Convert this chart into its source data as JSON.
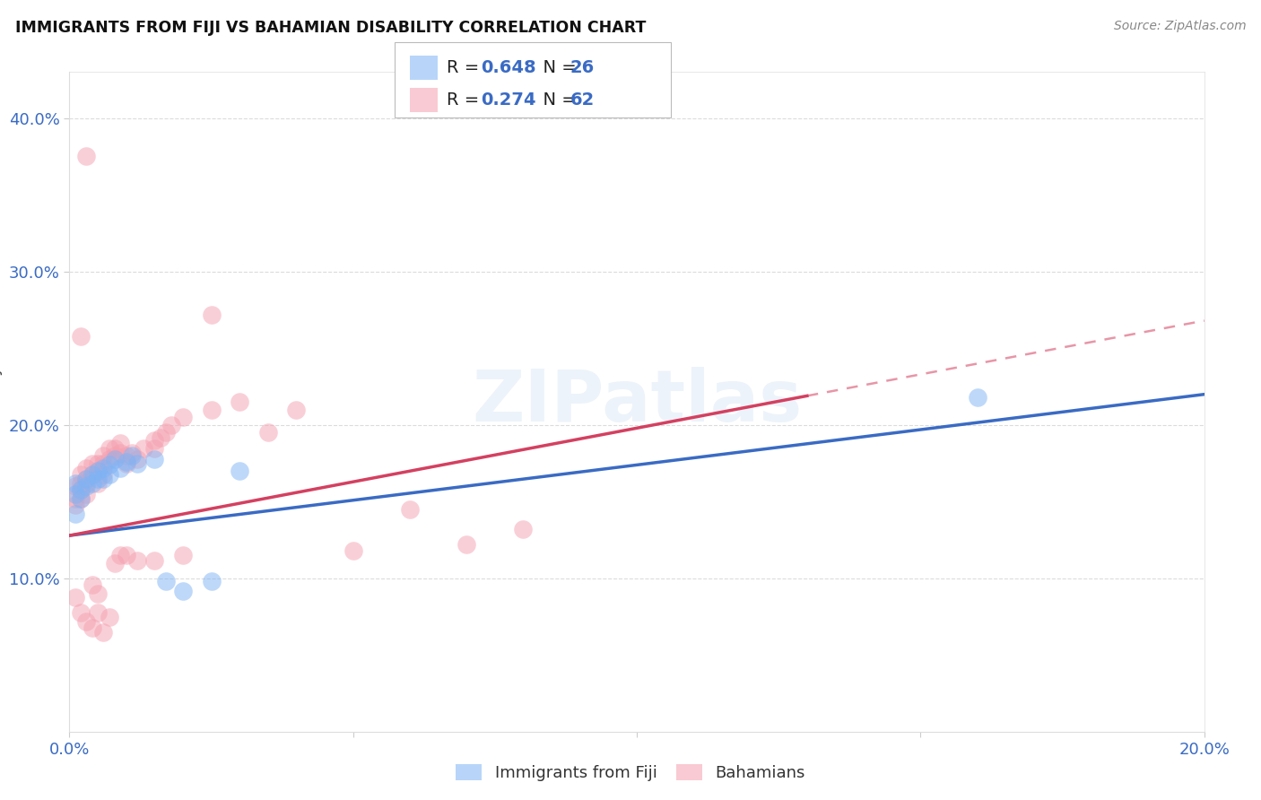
{
  "title": "IMMIGRANTS FROM FIJI VS BAHAMIAN DISABILITY CORRELATION CHART",
  "source": "Source: ZipAtlas.com",
  "ylabel": "Disability",
  "xlim": [
    0.0,
    0.2
  ],
  "ylim": [
    0.0,
    0.43
  ],
  "yticks": [
    0.1,
    0.2,
    0.3,
    0.4
  ],
  "ytick_labels": [
    "10.0%",
    "20.0%",
    "30.0%",
    "40.0%"
  ],
  "xticks": [
    0.0,
    0.05,
    0.1,
    0.15,
    0.2
  ],
  "fiji_R": 0.648,
  "fiji_N": 26,
  "bah_R": 0.274,
  "bah_N": 62,
  "fiji_color": "#7fb3f5",
  "bah_color": "#f5a0b0",
  "fiji_line_color": "#3a6bc4",
  "bah_line_color": "#d44060",
  "legend_text_color": "#3a6bc4",
  "watermark": "ZIPatlas",
  "fiji_scatter_x": [
    0.001,
    0.001,
    0.002,
    0.002,
    0.003,
    0.003,
    0.004,
    0.004,
    0.005,
    0.005,
    0.006,
    0.006,
    0.007,
    0.007,
    0.008,
    0.009,
    0.01,
    0.011,
    0.012,
    0.015,
    0.017,
    0.02,
    0.025,
    0.03,
    0.16,
    0.001
  ],
  "fiji_scatter_y": [
    0.162,
    0.155,
    0.158,
    0.152,
    0.165,
    0.16,
    0.168,
    0.162,
    0.17,
    0.165,
    0.172,
    0.165,
    0.174,
    0.168,
    0.178,
    0.172,
    0.176,
    0.18,
    0.175,
    0.178,
    0.098,
    0.092,
    0.098,
    0.17,
    0.218,
    0.142
  ],
  "bah_scatter_x": [
    0.001,
    0.001,
    0.001,
    0.002,
    0.002,
    0.002,
    0.002,
    0.003,
    0.003,
    0.003,
    0.003,
    0.004,
    0.004,
    0.005,
    0.005,
    0.005,
    0.006,
    0.006,
    0.006,
    0.007,
    0.007,
    0.008,
    0.008,
    0.009,
    0.009,
    0.01,
    0.01,
    0.011,
    0.012,
    0.013,
    0.015,
    0.015,
    0.016,
    0.017,
    0.018,
    0.02,
    0.025,
    0.03,
    0.035,
    0.04,
    0.05,
    0.06,
    0.07,
    0.08,
    0.001,
    0.002,
    0.003,
    0.004,
    0.005,
    0.006,
    0.007,
    0.008,
    0.009,
    0.01,
    0.012,
    0.015,
    0.02,
    0.025,
    0.002,
    0.003,
    0.004,
    0.005
  ],
  "bah_scatter_y": [
    0.16,
    0.152,
    0.148,
    0.168,
    0.162,
    0.158,
    0.152,
    0.172,
    0.165,
    0.162,
    0.155,
    0.175,
    0.168,
    0.175,
    0.17,
    0.162,
    0.18,
    0.175,
    0.168,
    0.185,
    0.178,
    0.185,
    0.18,
    0.188,
    0.182,
    0.18,
    0.175,
    0.182,
    0.178,
    0.185,
    0.19,
    0.185,
    0.192,
    0.195,
    0.2,
    0.205,
    0.21,
    0.215,
    0.195,
    0.21,
    0.118,
    0.145,
    0.122,
    0.132,
    0.088,
    0.078,
    0.072,
    0.068,
    0.078,
    0.065,
    0.075,
    0.11,
    0.115,
    0.115,
    0.112,
    0.112,
    0.115,
    0.272,
    0.258,
    0.375,
    0.096,
    0.09
  ]
}
